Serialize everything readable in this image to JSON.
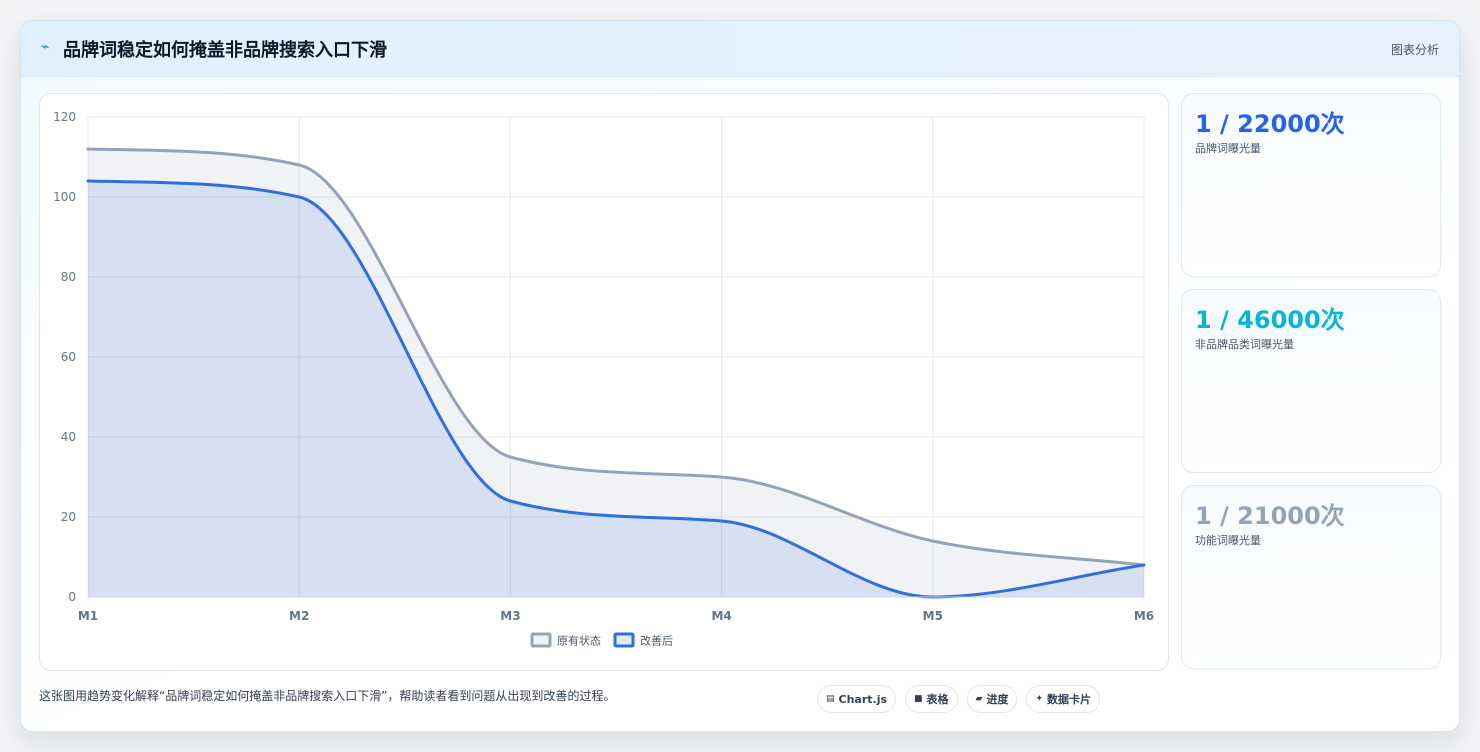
{
  "header": {
    "icon": "chart-line-icon",
    "title": "品牌词稳定如何掩盖非品牌搜索入口下滑",
    "tag": "图表分析"
  },
  "chart_data": {
    "type": "area",
    "categories": [
      "M1",
      "M2",
      "M3",
      "M4",
      "M5",
      "M6"
    ],
    "series": [
      {
        "name": "原有状态",
        "values": [
          112,
          108,
          35,
          30,
          14,
          8
        ],
        "color": "#94a3b8"
      },
      {
        "name": "改善后",
        "values": [
          104,
          100,
          24,
          19,
          0,
          8
        ],
        "color": "#2f6fde"
      }
    ],
    "ylim": [
      0,
      120
    ],
    "yticks": [
      0,
      20,
      40,
      60,
      80,
      100,
      120
    ],
    "grid": true,
    "legend_position": "bottom",
    "smooth": true
  },
  "kpis": [
    {
      "value": "1 / 22000次",
      "label": "品牌词曝光量",
      "color": "#2563eb"
    },
    {
      "value": "1 / 46000次",
      "label": "非品牌品类词曝光量",
      "color": "#06b6d4"
    },
    {
      "value": "1 / 21000次",
      "label": "功能词曝光量",
      "color": "#94a3b8"
    }
  ],
  "caption": "这张图用趋势变化解释“品牌词稳定如何掩盖非品牌搜索入口下滑”，帮助读者看到问题从出现到改善的过程。",
  "chips": [
    {
      "icon": "chart-icon",
      "glyph": "▤",
      "label": "Chart.js"
    },
    {
      "icon": "table-icon",
      "glyph": "■",
      "label": "表格"
    },
    {
      "icon": "progress-icon",
      "glyph": "▰",
      "label": "进度"
    },
    {
      "icon": "sparkle-icon",
      "glyph": "✦",
      "label": "数据卡片"
    }
  ]
}
